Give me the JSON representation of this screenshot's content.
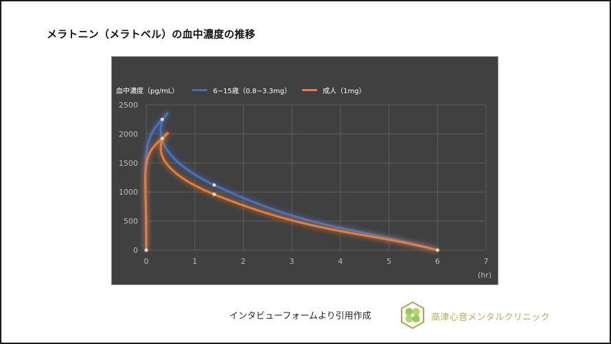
{
  "page": {
    "title": "メラトニン（メラトベル）の血中濃度の推移",
    "footer_text": "インタビューフォームより引用作成",
    "clinic_name": "高津心音メンタルクリニック",
    "logo_icon": "clover-hexagon-logo"
  },
  "chart_data": {
    "type": "line",
    "title": "メラトニン（メラトベル）の血中濃度の推移",
    "xlabel": "(hr)",
    "ylabel": "血中濃度（pg/mL）",
    "xlim": [
      0,
      7
    ],
    "ylim": [
      0,
      2500
    ],
    "x_ticks": [
      "0",
      "1",
      "2",
      "3",
      "4",
      "5",
      "6",
      "7"
    ],
    "y_ticks": [
      "0",
      "500",
      "1000",
      "1500",
      "2000",
      "2500"
    ],
    "grid": true,
    "legend_position": "top",
    "smooth": true,
    "series": [
      {
        "name": "6~15歳（0.8~3.3mg）",
        "color": "#4472c4",
        "points": [
          [
            0,
            0
          ],
          [
            0.33,
            2250
          ],
          [
            1.4,
            1120
          ],
          [
            6,
            0
          ]
        ]
      },
      {
        "name": "成人（1mg）",
        "color": "#ed7d31",
        "points": [
          [
            0,
            0
          ],
          [
            0.33,
            1920
          ],
          [
            1.4,
            960
          ],
          [
            6,
            0
          ]
        ]
      }
    ]
  },
  "colors": {
    "chart_background": "#404040",
    "gridline": "#5e5e5e",
    "tick_text": "#bdbdbd",
    "clinic_gold": "#c2a855"
  }
}
